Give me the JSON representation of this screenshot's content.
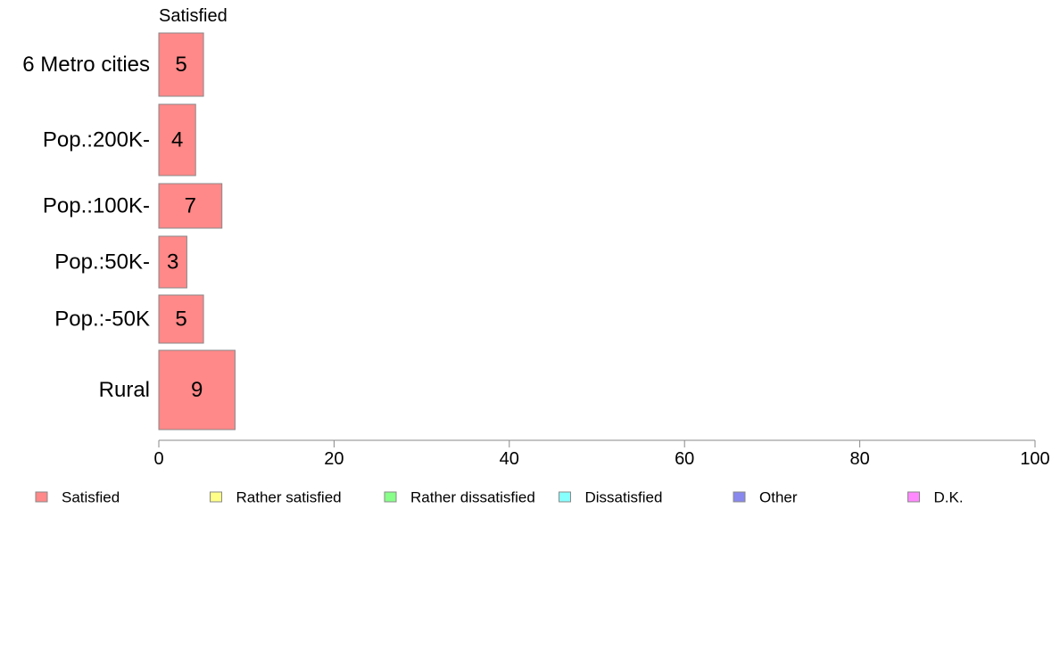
{
  "chart_data": {
    "type": "bar",
    "orientation": "horizontal",
    "stacked": true,
    "column_title": "Satisfied",
    "categories": [
      "6 Metro cities",
      "Pop.:200K-",
      "Pop.:100K-",
      "Pop.:50K-",
      "Pop.:-50K",
      "Rural"
    ],
    "series": [
      {
        "name": "Satisfied",
        "color": "#ff8888",
        "values": [
          5.1,
          4.2,
          7.2,
          3.2,
          5.1,
          8.7
        ],
        "labels": [
          "5",
          "4",
          "7",
          "3",
          "5",
          "9"
        ]
      }
    ],
    "xlim": [
      0,
      100
    ],
    "xticks": [
      0,
      20,
      40,
      60,
      80,
      100
    ],
    "xtick_labels": [
      "0",
      "20",
      "40",
      "60",
      "80",
      "100"
    ],
    "grid": false,
    "legend_position": "bottom",
    "legend": [
      {
        "label": "Satisfied",
        "color": "#ff8888"
      },
      {
        "label": "Rather satisfied",
        "color": "#ffff88"
      },
      {
        "label": "Rather dissatisfied",
        "color": "#88ff88"
      },
      {
        "label": "Dissatisfied",
        "color": "#88ffff"
      },
      {
        "label": "Other",
        "color": "#8888ee"
      },
      {
        "label": "D.K.",
        "color": "#ff88ff"
      }
    ]
  }
}
